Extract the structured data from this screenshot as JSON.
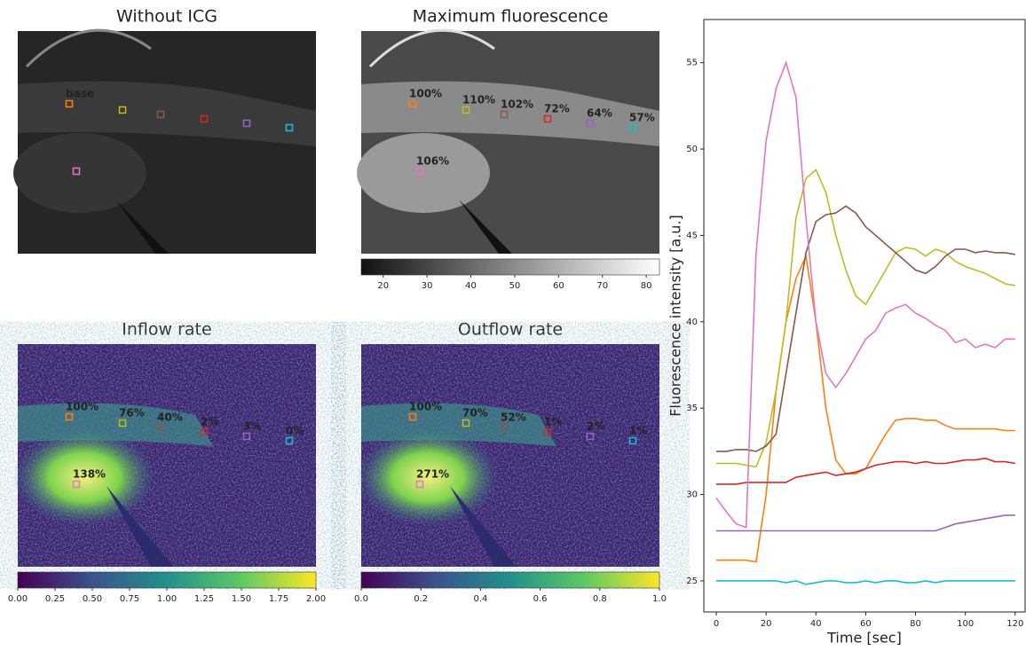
{
  "roi_colors": [
    "#ff7f0e",
    "#bcbd22",
    "#8c564b",
    "#d62728",
    "#9467bd",
    "#17becf",
    "#e377c2"
  ],
  "chart_data": [
    {
      "type": "image",
      "title": "Without ICG",
      "style": "gray-dark",
      "roi_labels": [
        "base",
        null,
        null,
        null,
        null,
        null,
        null
      ]
    },
    {
      "type": "image",
      "title": "Maximum fluorescence",
      "style": "gray-bright",
      "roi_labels": [
        "100%",
        "110%",
        "102%",
        "72%",
        "64%",
        "57%",
        "106%"
      ],
      "colorbar": {
        "colormap": "gray",
        "lim": [
          15,
          83
        ],
        "ticks": [
          20,
          30,
          40,
          50,
          60,
          70,
          80
        ]
      }
    },
    {
      "type": "image",
      "title": "Inflow rate",
      "style": "viridis",
      "roi_labels": [
        "100%",
        "76%",
        "40%",
        "2%",
        "3%",
        "0%",
        "138%"
      ],
      "colorbar": {
        "colormap": "viridis",
        "lim": [
          0,
          2
        ],
        "ticks": [
          {
            "value": 0,
            "label": "0.00"
          },
          0.25,
          {
            "value": 0.5,
            "label": "0.50"
          },
          0.75,
          {
            "value": 1,
            "label": "1.00"
          },
          1.25,
          {
            "value": 1.5,
            "label": "1.50"
          },
          1.75,
          {
            "value": 2,
            "label": "2.00"
          }
        ]
      }
    },
    {
      "type": "image",
      "title": "Outflow rate",
      "style": "viridis",
      "roi_labels": [
        "100%",
        "70%",
        "52%",
        "1%",
        "2%",
        "1%",
        "271%"
      ],
      "colorbar": {
        "colormap": "viridis",
        "lim": [
          0,
          1
        ],
        "ticks": [
          {
            "value": 0,
            "label": "0.0"
          },
          0.2,
          0.4,
          0.6,
          0.8,
          {
            "value": 1,
            "label": "1.0"
          }
        ]
      }
    },
    {
      "type": "line",
      "x_label": "Time [sec]",
      "y_label": "Fluorescence intensity [a.u.]",
      "xlim": [
        -5,
        124
      ],
      "ylim": [
        23.2,
        57.5
      ],
      "xticks": [
        0,
        20,
        40,
        60,
        80,
        100,
        120
      ],
      "yticks": [
        25,
        30,
        35,
        40,
        45,
        50,
        55
      ],
      "x": [
        0,
        4,
        8,
        12,
        16,
        20,
        24,
        28,
        32,
        36,
        40,
        44,
        48,
        52,
        56,
        60,
        64,
        68,
        72,
        76,
        80,
        84,
        88,
        92,
        96,
        100,
        104,
        108,
        112,
        116,
        120
      ],
      "series": [
        {
          "color": "#ff7f0e",
          "values": [
            26.2,
            26.2,
            26.2,
            26.2,
            26.1,
            30,
            36,
            40,
            42.5,
            43.8,
            40,
            35,
            32,
            31.2,
            31.2,
            31.5,
            32.5,
            33.5,
            34.3,
            34.4,
            34.4,
            34.3,
            34.3,
            34,
            33.8,
            33.8,
            33.8,
            33.8,
            33.8,
            33.7,
            33.7
          ]
        },
        {
          "color": "#bcbd22",
          "values": [
            31.8,
            31.8,
            31.8,
            31.7,
            31.6,
            33,
            36,
            40,
            46,
            48.3,
            48.8,
            47.5,
            45,
            43,
            41.5,
            41,
            42,
            43,
            44,
            44.3,
            44.2,
            43.8,
            44.2,
            44,
            43.5,
            43.2,
            43,
            42.8,
            42.5,
            42.2,
            42.1
          ]
        },
        {
          "color": "#8c564b",
          "values": [
            32.5,
            32.5,
            32.6,
            32.6,
            32.5,
            32.8,
            33.5,
            37,
            40.5,
            44,
            45.8,
            46.2,
            46.3,
            46.7,
            46.3,
            45.5,
            45,
            44.5,
            44,
            43.5,
            43,
            42.8,
            43.2,
            43.8,
            44.2,
            44.2,
            44,
            44.1,
            44,
            44,
            43.9
          ]
        },
        {
          "color": "#d62728",
          "values": [
            30.6,
            30.6,
            30.6,
            30.7,
            30.7,
            30.7,
            30.7,
            30.7,
            31,
            31.1,
            31.2,
            31.3,
            31.1,
            31.2,
            31.3,
            31.5,
            31.7,
            31.8,
            31.9,
            31.9,
            31.8,
            31.9,
            31.8,
            31.8,
            31.9,
            32,
            32,
            32.1,
            31.9,
            31.9,
            31.8
          ]
        },
        {
          "color": "#9467bd",
          "values": [
            27.9,
            27.9,
            27.9,
            27.9,
            27.9,
            27.9,
            27.9,
            27.9,
            27.9,
            27.9,
            27.9,
            27.9,
            27.9,
            27.9,
            27.9,
            27.9,
            27.9,
            27.9,
            27.9,
            27.9,
            27.9,
            27.9,
            27.9,
            28.1,
            28.3,
            28.4,
            28.5,
            28.6,
            28.7,
            28.8,
            28.8
          ]
        },
        {
          "color": "#17becf",
          "values": [
            25,
            25,
            25,
            25,
            25,
            25,
            25,
            24.9,
            25,
            24.8,
            24.9,
            25,
            25,
            24.9,
            24.9,
            25,
            24.9,
            25,
            25,
            24.9,
            24.9,
            25,
            24.9,
            25,
            25,
            25,
            25,
            25,
            25,
            25,
            25
          ]
        },
        {
          "color": "#e377c2",
          "values": [
            29.8,
            29,
            28.3,
            28.1,
            44,
            50.5,
            53.5,
            55,
            53,
            46,
            40,
            37,
            36.2,
            37,
            38,
            39,
            39.5,
            40.5,
            40.8,
            41,
            40.5,
            40.2,
            39.8,
            39.5,
            38.8,
            39,
            38.5,
            38.7,
            38.5,
            39,
            39
          ]
        }
      ]
    }
  ]
}
